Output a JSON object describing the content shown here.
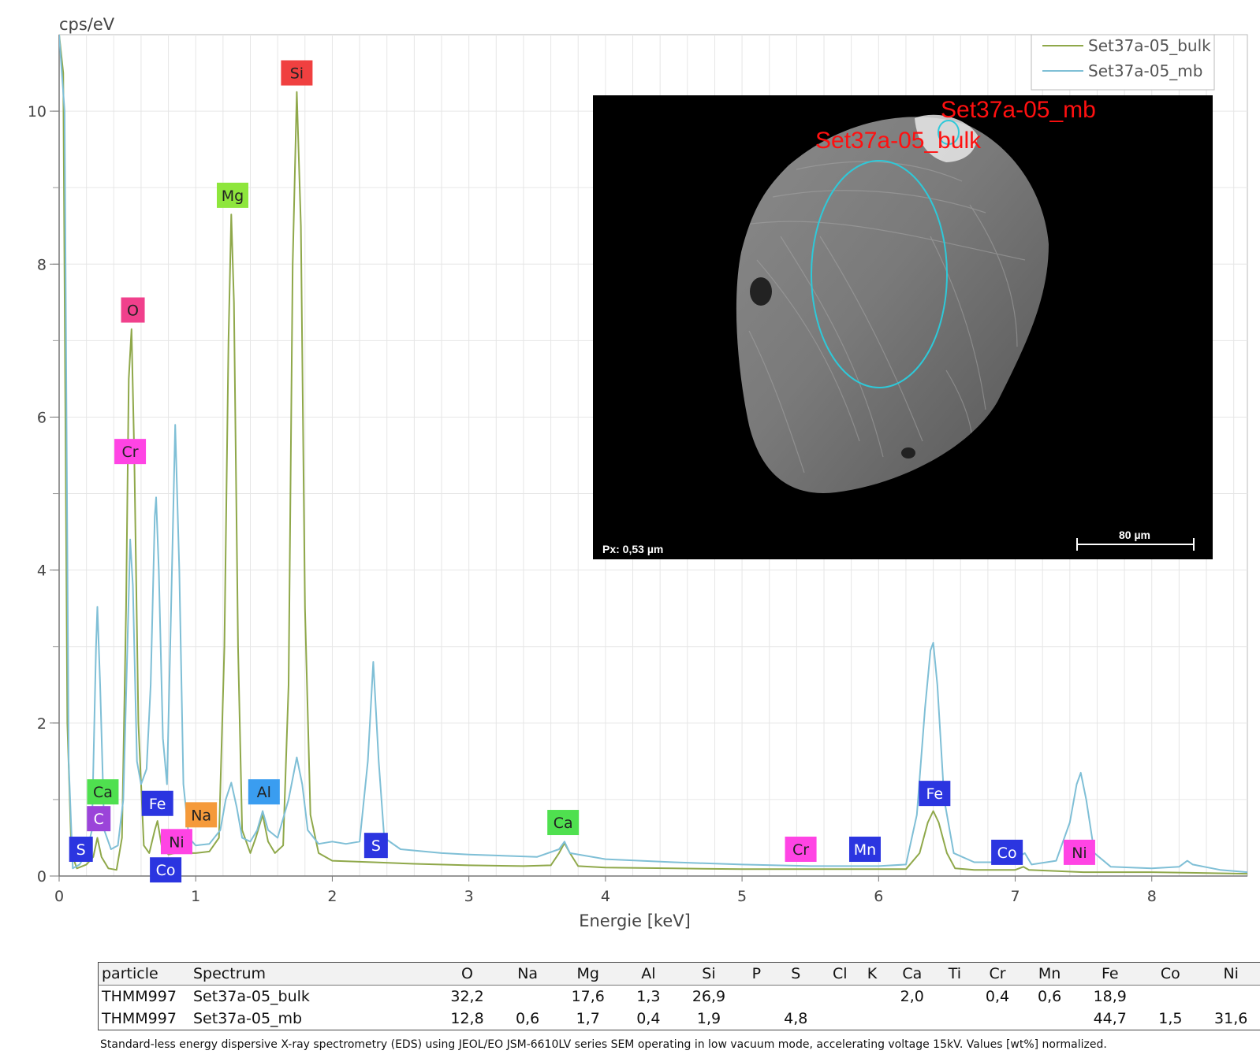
{
  "chart_data": {
    "type": "line",
    "title": "",
    "xlabel": "Energie [keV]",
    "ylabel": "cps/eV",
    "xlim": [
      0,
      8.7
    ],
    "ylim": [
      0,
      11
    ],
    "xticks": [
      0,
      1,
      2,
      3,
      4,
      5,
      6,
      7,
      8
    ],
    "yticks": [
      0,
      2,
      4,
      6,
      8,
      10
    ],
    "grid": true,
    "legend_position": "top-right",
    "series": [
      {
        "name": "Set37a-05_bulk",
        "color": "#8fa84a",
        "points": [
          [
            0.0,
            11.0
          ],
          [
            0.03,
            10.5
          ],
          [
            0.06,
            2.0
          ],
          [
            0.09,
            0.3
          ],
          [
            0.13,
            0.1
          ],
          [
            0.2,
            0.15
          ],
          [
            0.25,
            0.25
          ],
          [
            0.28,
            0.5
          ],
          [
            0.31,
            0.25
          ],
          [
            0.36,
            0.1
          ],
          [
            0.42,
            0.08
          ],
          [
            0.46,
            0.5
          ],
          [
            0.49,
            3.5
          ],
          [
            0.51,
            6.5
          ],
          [
            0.53,
            7.15
          ],
          [
            0.55,
            5.5
          ],
          [
            0.58,
            2.0
          ],
          [
            0.62,
            0.4
          ],
          [
            0.66,
            0.3
          ],
          [
            0.7,
            0.6
          ],
          [
            0.72,
            0.72
          ],
          [
            0.75,
            0.4
          ],
          [
            0.8,
            0.28
          ],
          [
            0.85,
            0.3
          ],
          [
            0.9,
            0.3
          ],
          [
            1.0,
            0.3
          ],
          [
            1.1,
            0.32
          ],
          [
            1.17,
            0.5
          ],
          [
            1.21,
            3.0
          ],
          [
            1.24,
            7.0
          ],
          [
            1.26,
            8.65
          ],
          [
            1.28,
            7.5
          ],
          [
            1.31,
            3.0
          ],
          [
            1.34,
            0.6
          ],
          [
            1.4,
            0.3
          ],
          [
            1.44,
            0.5
          ],
          [
            1.49,
            0.8
          ],
          [
            1.53,
            0.45
          ],
          [
            1.58,
            0.3
          ],
          [
            1.64,
            0.4
          ],
          [
            1.68,
            2.5
          ],
          [
            1.71,
            8.0
          ],
          [
            1.74,
            10.25
          ],
          [
            1.77,
            8.5
          ],
          [
            1.8,
            3.5
          ],
          [
            1.84,
            0.8
          ],
          [
            1.9,
            0.3
          ],
          [
            2.0,
            0.2
          ],
          [
            2.3,
            0.18
          ],
          [
            2.6,
            0.16
          ],
          [
            3.0,
            0.14
          ],
          [
            3.4,
            0.13
          ],
          [
            3.6,
            0.14
          ],
          [
            3.66,
            0.3
          ],
          [
            3.7,
            0.43
          ],
          [
            3.74,
            0.3
          ],
          [
            3.8,
            0.13
          ],
          [
            4.0,
            0.11
          ],
          [
            4.5,
            0.1
          ],
          [
            5.0,
            0.09
          ],
          [
            5.5,
            0.09
          ],
          [
            5.9,
            0.09
          ],
          [
            6.2,
            0.09
          ],
          [
            6.3,
            0.3
          ],
          [
            6.36,
            0.7
          ],
          [
            6.4,
            0.85
          ],
          [
            6.44,
            0.7
          ],
          [
            6.5,
            0.3
          ],
          [
            6.56,
            0.1
          ],
          [
            6.7,
            0.08
          ],
          [
            7.0,
            0.08
          ],
          [
            7.06,
            0.12
          ],
          [
            7.1,
            0.08
          ],
          [
            7.5,
            0.05
          ],
          [
            8.0,
            0.05
          ],
          [
            8.7,
            0.03
          ]
        ]
      },
      {
        "name": "Set37a-05_mb",
        "color": "#7fbfd6",
        "points": [
          [
            0.0,
            11.0
          ],
          [
            0.04,
            10.0
          ],
          [
            0.07,
            1.5
          ],
          [
            0.1,
            0.1
          ],
          [
            0.15,
            0.15
          ],
          [
            0.2,
            0.3
          ],
          [
            0.24,
            0.6
          ],
          [
            0.27,
            3.0
          ],
          [
            0.28,
            3.52
          ],
          [
            0.3,
            2.5
          ],
          [
            0.33,
            0.6
          ],
          [
            0.38,
            0.35
          ],
          [
            0.43,
            0.4
          ],
          [
            0.47,
            1.0
          ],
          [
            0.5,
            3.0
          ],
          [
            0.52,
            4.4
          ],
          [
            0.54,
            3.8
          ],
          [
            0.57,
            1.5
          ],
          [
            0.6,
            1.2
          ],
          [
            0.64,
            1.4
          ],
          [
            0.67,
            2.5
          ],
          [
            0.7,
            4.7
          ],
          [
            0.71,
            4.95
          ],
          [
            0.73,
            4.0
          ],
          [
            0.76,
            1.8
          ],
          [
            0.79,
            1.2
          ],
          [
            0.82,
            3.5
          ],
          [
            0.85,
            5.9
          ],
          [
            0.88,
            4.0
          ],
          [
            0.91,
            1.2
          ],
          [
            0.95,
            0.5
          ],
          [
            1.0,
            0.4
          ],
          [
            1.1,
            0.42
          ],
          [
            1.18,
            0.6
          ],
          [
            1.22,
            1.0
          ],
          [
            1.26,
            1.22
          ],
          [
            1.3,
            0.9
          ],
          [
            1.34,
            0.5
          ],
          [
            1.4,
            0.45
          ],
          [
            1.45,
            0.6
          ],
          [
            1.49,
            0.85
          ],
          [
            1.53,
            0.6
          ],
          [
            1.6,
            0.5
          ],
          [
            1.68,
            1.0
          ],
          [
            1.74,
            1.55
          ],
          [
            1.78,
            1.2
          ],
          [
            1.82,
            0.6
          ],
          [
            1.9,
            0.42
          ],
          [
            2.0,
            0.45
          ],
          [
            2.1,
            0.42
          ],
          [
            2.2,
            0.45
          ],
          [
            2.26,
            1.5
          ],
          [
            2.3,
            2.8
          ],
          [
            2.34,
            1.5
          ],
          [
            2.38,
            0.5
          ],
          [
            2.5,
            0.35
          ],
          [
            2.8,
            0.3
          ],
          [
            3.0,
            0.28
          ],
          [
            3.5,
            0.25
          ],
          [
            3.66,
            0.35
          ],
          [
            3.7,
            0.45
          ],
          [
            3.74,
            0.3
          ],
          [
            4.0,
            0.22
          ],
          [
            4.5,
            0.18
          ],
          [
            5.0,
            0.15
          ],
          [
            5.5,
            0.13
          ],
          [
            6.0,
            0.13
          ],
          [
            6.2,
            0.15
          ],
          [
            6.28,
            0.8
          ],
          [
            6.34,
            2.2
          ],
          [
            6.38,
            2.95
          ],
          [
            6.4,
            3.05
          ],
          [
            6.43,
            2.5
          ],
          [
            6.48,
            1.0
          ],
          [
            6.55,
            0.3
          ],
          [
            6.7,
            0.18
          ],
          [
            6.9,
            0.18
          ],
          [
            7.0,
            0.22
          ],
          [
            7.07,
            0.3
          ],
          [
            7.12,
            0.15
          ],
          [
            7.3,
            0.2
          ],
          [
            7.4,
            0.7
          ],
          [
            7.45,
            1.2
          ],
          [
            7.48,
            1.35
          ],
          [
            7.52,
            1.0
          ],
          [
            7.58,
            0.3
          ],
          [
            7.7,
            0.12
          ],
          [
            8.0,
            0.1
          ],
          [
            8.2,
            0.12
          ],
          [
            8.26,
            0.2
          ],
          [
            8.3,
            0.15
          ],
          [
            8.5,
            0.08
          ],
          [
            8.7,
            0.05
          ]
        ]
      }
    ],
    "annotations": [
      {
        "text": "S",
        "x": 0.16,
        "y": 0.35,
        "color": "#2b35e0",
        "text_color": "#ffffff"
      },
      {
        "text": "C",
        "x": 0.29,
        "y": 0.75,
        "color": "#9b44d9",
        "text_color": "#ffffff"
      },
      {
        "text": "Ca",
        "x": 0.32,
        "y": 1.1,
        "color": "#4fe04f",
        "text_color": "#222222"
      },
      {
        "text": "O",
        "x": 0.54,
        "y": 7.4,
        "color": "#f0408c",
        "text_color": "#222222"
      },
      {
        "text": "Cr",
        "x": 0.52,
        "y": 5.55,
        "color": "#ff44e4",
        "text_color": "#222222"
      },
      {
        "text": "Fe",
        "x": 0.72,
        "y": 0.95,
        "color": "#2b35e0",
        "text_color": "#ffffff"
      },
      {
        "text": "Co",
        "x": 0.78,
        "y": 0.08,
        "color": "#2b35e0",
        "text_color": "#ffffff"
      },
      {
        "text": "Ni",
        "x": 0.86,
        "y": 0.45,
        "color": "#ff44e4",
        "text_color": "#222222"
      },
      {
        "text": "Na",
        "x": 1.04,
        "y": 0.8,
        "color": "#f59a3a",
        "text_color": "#222222"
      },
      {
        "text": "Mg",
        "x": 1.27,
        "y": 8.9,
        "color": "#8ee63c",
        "text_color": "#222222"
      },
      {
        "text": "Al",
        "x": 1.5,
        "y": 1.1,
        "color": "#3a9df0",
        "text_color": "#222222"
      },
      {
        "text": "Si",
        "x": 1.74,
        "y": 10.5,
        "color": "#f04040",
        "text_color": "#222222"
      },
      {
        "text": "S",
        "x": 2.32,
        "y": 0.4,
        "color": "#2b35e0",
        "text_color": "#ffffff"
      },
      {
        "text": "Ca",
        "x": 3.69,
        "y": 0.7,
        "color": "#4fe04f",
        "text_color": "#222222"
      },
      {
        "text": "Cr",
        "x": 5.43,
        "y": 0.35,
        "color": "#ff44e4",
        "text_color": "#222222"
      },
      {
        "text": "Mn",
        "x": 5.9,
        "y": 0.35,
        "color": "#2b35e0",
        "text_color": "#ffffff"
      },
      {
        "text": "Fe",
        "x": 6.41,
        "y": 1.08,
        "color": "#2b35e0",
        "text_color": "#ffffff"
      },
      {
        "text": "Co",
        "x": 6.94,
        "y": 0.31,
        "color": "#2b35e0",
        "text_color": "#ffffff"
      },
      {
        "text": "Ni",
        "x": 7.47,
        "y": 0.31,
        "color": "#ff44e4",
        "text_color": "#222222"
      }
    ]
  },
  "inset": {
    "label_mb": "Set37a-05_mb",
    "label_bulk": "Set37a-05_bulk",
    "pixel_size": "Px: 0,53 µm",
    "scale_bar": "80 µm"
  },
  "table": {
    "headers": [
      "particle",
      "Spectrum",
      "O",
      "Na",
      "Mg",
      "Al",
      "Si",
      "P",
      "S",
      "Cl",
      "K",
      "Ca",
      "Ti",
      "Cr",
      "Mn",
      "Fe",
      "Co",
      "Ni"
    ],
    "rows": [
      [
        "THMM997",
        "Set37a-05_bulk",
        "32,2",
        "",
        "17,6",
        "1,3",
        "26,9",
        "",
        "",
        "",
        "",
        "2,0",
        "",
        "0,4",
        "0,6",
        "18,9",
        "",
        ""
      ],
      [
        "THMM997",
        "Set37a-05_mb",
        "12,8",
        "0,6",
        "1,7",
        "0,4",
        "1,9",
        "",
        "4,8",
        "",
        "",
        "",
        "",
        "",
        "",
        "44,7",
        "1,5",
        "31,6"
      ]
    ]
  },
  "footnote": "Standard-less energy dispersive X-ray spectrometry (EDS) using JEOL/EO JSM-6610LV series SEM operating in low vacuum mode, accelerating voltage 15kV. Values [wt%] normalized."
}
